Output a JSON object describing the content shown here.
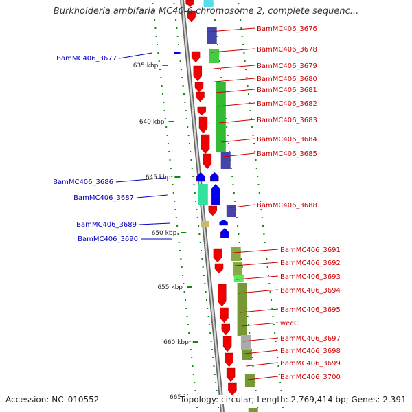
{
  "title": "Burkholderia ambifaria MC40-6 chromosome 2, complete sequenc...",
  "accession": "Accession: NC_010552",
  "topology": "Topology: circular; Length: 2,769,414 bp; Genes: 2,391",
  "scale_labels": [
    "635 kbp",
    "640 kbp",
    "645 kbp",
    "650 kbp",
    "655 kbp",
    "660 kbp",
    "665 kbp"
  ],
  "colors": {
    "forward_label": "#cc0000",
    "reverse_label": "#0000bb",
    "forward_cds": "#ee0000",
    "reverse_cds": "#0000ee",
    "backbone": "#aaaaaa",
    "tick": "#118811"
  },
  "forward_labels": [
    "BamMC406_3676",
    "BamMC406_3678",
    "BamMC406_3679",
    "BamMC406_3680",
    "BamMC406_3681",
    "BamMC406_3682",
    "BamMC406_3683",
    "BamMC406_3684",
    "BamMC406_3685",
    "BamMC406_3688",
    "BamMC406_3691",
    "BamMC406_3692",
    "BamMC406_3693",
    "BamMC406_3694",
    "BamMC406_3695",
    "wecC",
    "BamMC406_3697",
    "BamMC406_3698",
    "BamMC406_3699",
    "BamMC406_3700"
  ],
  "reverse_labels": [
    "BamMC406_3677",
    "BamMC406_3686",
    "BamMC406_3687",
    "BamMC406_3689",
    "BamMC406_3690"
  ]
}
